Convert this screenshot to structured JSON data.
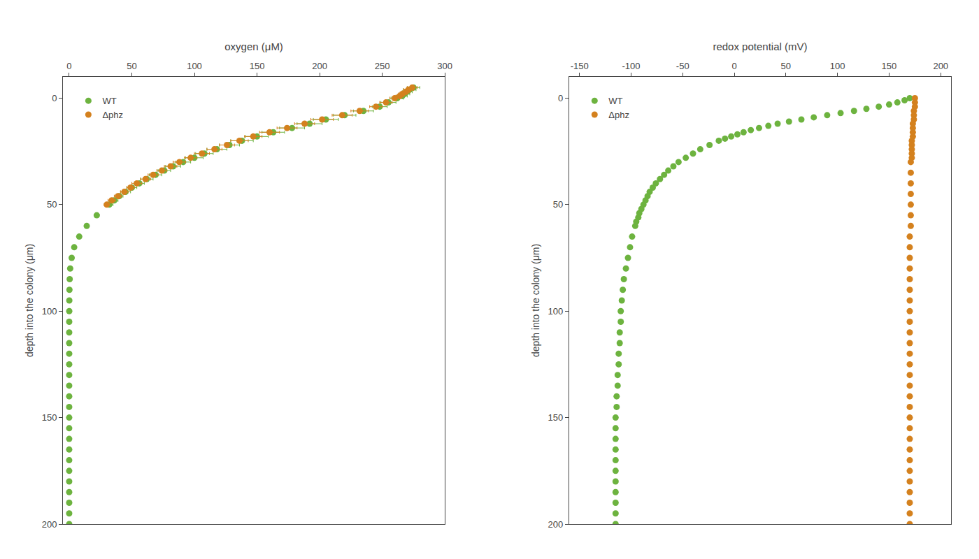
{
  "chart_data": [
    {
      "type": "scatter",
      "x_label": "oxygen (μM)",
      "y_label": "depth into the colony (μm)",
      "xlim": [
        -5,
        300
      ],
      "xticks": [
        0,
        50,
        100,
        150,
        200,
        250,
        300
      ],
      "ylim": [
        200,
        -10
      ],
      "yticks": [
        0,
        50,
        100,
        150,
        200
      ],
      "grid": false,
      "legend": "upper left",
      "series": [
        {
          "name": "WT",
          "color": "#6db33f",
          "y": [
            -5,
            -4,
            -3,
            -2,
            -1,
            0,
            2,
            4,
            6,
            8,
            10,
            12,
            14,
            16,
            18,
            20,
            22,
            24,
            26,
            28,
            30,
            32,
            34,
            36,
            38,
            40,
            42,
            44,
            46,
            48,
            50,
            55,
            60,
            65,
            70,
            75,
            80,
            85,
            90,
            95,
            100,
            105,
            110,
            115,
            120,
            125,
            130,
            135,
            140,
            145,
            150,
            155,
            160,
            165,
            170,
            175,
            180,
            185,
            190,
            195,
            200
          ],
          "x": [
            275,
            272,
            270,
            268,
            266,
            262,
            255,
            248,
            235,
            220,
            205,
            192,
            178,
            163,
            150,
            138,
            128,
            118,
            108,
            100,
            91,
            83,
            76,
            69,
            62,
            56,
            50,
            45,
            40,
            36,
            32,
            22,
            14,
            8,
            4,
            2,
            0.8,
            0.4,
            0.2,
            0.1,
            0.05,
            0.02,
            0.01,
            0.005,
            0.002,
            0.001,
            0.001,
            0.001,
            0.001,
            0.001,
            0.001,
            0.001,
            0.001,
            0.001,
            0.001,
            0.001,
            0.001,
            0.001,
            0.001,
            0.001,
            0.001
          ],
          "xerr": [
            5,
            5,
            4,
            4,
            4,
            5,
            6,
            6,
            8,
            9,
            10,
            10,
            10,
            9,
            9,
            9,
            8,
            8,
            7,
            7,
            6,
            6,
            5,
            5,
            5,
            4,
            4,
            4,
            3,
            3,
            3,
            2,
            1,
            0.5,
            0,
            0,
            0,
            0,
            0,
            0,
            0,
            0,
            0,
            0,
            0,
            0,
            0,
            0,
            0,
            0,
            0,
            0,
            0,
            0,
            0,
            0,
            0,
            0,
            0,
            0,
            0
          ]
        },
        {
          "name": "Δphz",
          "color": "#d4811e",
          "y": [
            -5,
            -4,
            -3,
            -2,
            -1,
            0,
            2,
            4,
            6,
            8,
            10,
            12,
            14,
            16,
            18,
            20,
            22,
            24,
            26,
            28,
            30,
            32,
            34,
            36,
            38,
            40,
            42,
            44,
            46,
            48,
            50
          ],
          "x": [
            274,
            271,
            269,
            266,
            264,
            260,
            253,
            245,
            232,
            218,
            202,
            188,
            174,
            160,
            147,
            136,
            126,
            116,
            106,
            97,
            88,
            81,
            74,
            67,
            61,
            54,
            49,
            44,
            39,
            34,
            30
          ],
          "xerr": [
            4,
            4,
            3,
            3,
            3,
            4,
            5,
            5,
            7,
            8,
            9,
            8,
            8,
            8,
            7,
            7,
            6,
            6,
            6,
            5,
            5,
            5,
            4,
            4,
            4,
            4,
            3,
            3,
            3,
            3,
            2
          ]
        }
      ]
    },
    {
      "type": "scatter",
      "x_label": "redox potential (mV)",
      "y_label": "depth into the colony (μm)",
      "xlim": [
        -160,
        210
      ],
      "xticks": [
        -150,
        -100,
        -50,
        0,
        50,
        100,
        150,
        200
      ],
      "ylim": [
        200,
        -10
      ],
      "yticks": [
        0,
        50,
        100,
        150,
        200
      ],
      "grid": false,
      "legend": "upper left",
      "series": [
        {
          "name": "WT",
          "color": "#6db33f",
          "y": [
            0,
            1,
            2,
            3,
            4,
            5,
            6,
            7,
            8,
            9,
            10,
            11,
            12,
            13,
            14,
            15,
            16,
            17,
            18,
            19,
            20,
            22,
            24,
            26,
            28,
            30,
            32,
            34,
            36,
            38,
            40,
            42,
            44,
            46,
            48,
            50,
            52,
            54,
            56,
            58,
            60,
            65,
            70,
            75,
            80,
            85,
            90,
            95,
            100,
            105,
            110,
            115,
            120,
            125,
            130,
            135,
            140,
            145,
            150,
            155,
            160,
            165,
            170,
            175,
            180,
            185,
            190,
            195,
            200
          ],
          "x": [
            170,
            165,
            158,
            150,
            140,
            128,
            116,
            103,
            90,
            77,
            65,
            53,
            42,
            33,
            24,
            16,
            9,
            3,
            -3,
            -9,
            -15,
            -24,
            -33,
            -40,
            -47,
            -54,
            -59,
            -64,
            -68,
            -72,
            -76,
            -79,
            -82,
            -84,
            -86,
            -88,
            -90,
            -92,
            -93,
            -95,
            -96,
            -99,
            -101,
            -103,
            -105,
            -107,
            -108,
            -109,
            -110,
            -110,
            -111,
            -111,
            -112,
            -112,
            -113,
            -113,
            -114,
            -114,
            -115,
            -115,
            -115,
            -115,
            -115,
            -115,
            -115,
            -115,
            -115,
            -115,
            -115
          ]
        },
        {
          "name": "Δphz",
          "color": "#d4811e",
          "y": [
            0,
            2,
            4,
            6,
            8,
            10,
            12,
            14,
            16,
            18,
            20,
            22,
            24,
            26,
            28,
            30,
            35,
            40,
            45,
            50,
            55,
            60,
            65,
            70,
            75,
            80,
            85,
            90,
            95,
            100,
            105,
            110,
            115,
            120,
            125,
            130,
            135,
            140,
            145,
            150,
            155,
            160,
            165,
            170,
            175,
            180,
            185,
            190,
            195,
            200
          ],
          "x": [
            175,
            175,
            175,
            174,
            174,
            174,
            173,
            173,
            173,
            173,
            172,
            172,
            172,
            172,
            172,
            171,
            171,
            171,
            171,
            171,
            171,
            171,
            170,
            170,
            170,
            170,
            170,
            170,
            170,
            170,
            170,
            170,
            170,
            170,
            170,
            170,
            170,
            170,
            170,
            170,
            170,
            170,
            170,
            170,
            170,
            170,
            170,
            170,
            170,
            170
          ]
        }
      ]
    }
  ]
}
